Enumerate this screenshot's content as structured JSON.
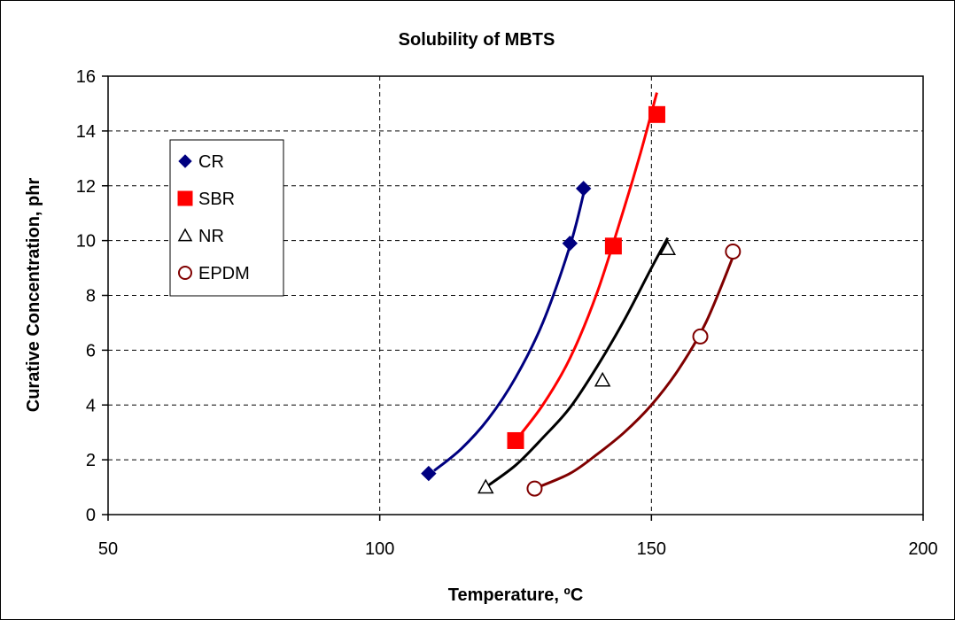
{
  "chart_data": {
    "type": "scatter",
    "title": "Solubility of MBTS",
    "xlabel": "Temperature, ºC",
    "ylabel": "Curative Concentration, phr",
    "xlim": [
      50,
      200
    ],
    "ylim": [
      0,
      16
    ],
    "xticks": [
      50,
      100,
      150,
      200
    ],
    "yticks": [
      0,
      2,
      4,
      6,
      8,
      10,
      12,
      14,
      16
    ],
    "grid": "dashed",
    "legend_position": "left",
    "series": [
      {
        "name": "CR",
        "marker": "diamond",
        "color": "#000080",
        "points": [
          [
            109,
            1.5
          ],
          [
            135,
            9.9
          ],
          [
            137.5,
            11.9
          ]
        ],
        "trend": [
          [
            110,
            1.6
          ],
          [
            115,
            2.4
          ],
          [
            120,
            3.5
          ],
          [
            125,
            5.0
          ],
          [
            130,
            7.0
          ],
          [
            135,
            9.8
          ],
          [
            137.5,
            11.7
          ]
        ]
      },
      {
        "name": "SBR",
        "marker": "square",
        "color": "#ff0000",
        "points": [
          [
            125,
            2.7
          ],
          [
            143,
            9.8
          ],
          [
            151,
            14.6
          ]
        ],
        "trend": [
          [
            125,
            2.7
          ],
          [
            130,
            4.0
          ],
          [
            135,
            5.7
          ],
          [
            140,
            8.1
          ],
          [
            145,
            11.2
          ],
          [
            148,
            13.2
          ],
          [
            151,
            15.4
          ]
        ]
      },
      {
        "name": "NR",
        "marker": "triangle",
        "color": "#000000",
        "points": [
          [
            119.5,
            1.0
          ],
          [
            141,
            4.9
          ],
          [
            153,
            9.7
          ]
        ],
        "trend": [
          [
            119.5,
            1.0
          ],
          [
            125,
            1.8
          ],
          [
            130,
            2.8
          ],
          [
            135,
            3.9
          ],
          [
            140,
            5.4
          ],
          [
            145,
            7.1
          ],
          [
            150,
            9.0
          ],
          [
            153,
            10.1
          ]
        ]
      },
      {
        "name": "EPDM",
        "marker": "circle",
        "color": "#800000",
        "points": [
          [
            128.5,
            0.95
          ],
          [
            159,
            6.5
          ],
          [
            165,
            9.6
          ]
        ],
        "trend": [
          [
            128.5,
            0.95
          ],
          [
            135,
            1.5
          ],
          [
            140,
            2.2
          ],
          [
            145,
            3.0
          ],
          [
            150,
            4.0
          ],
          [
            155,
            5.3
          ],
          [
            160,
            7.0
          ],
          [
            165,
            9.4
          ]
        ]
      }
    ]
  }
}
